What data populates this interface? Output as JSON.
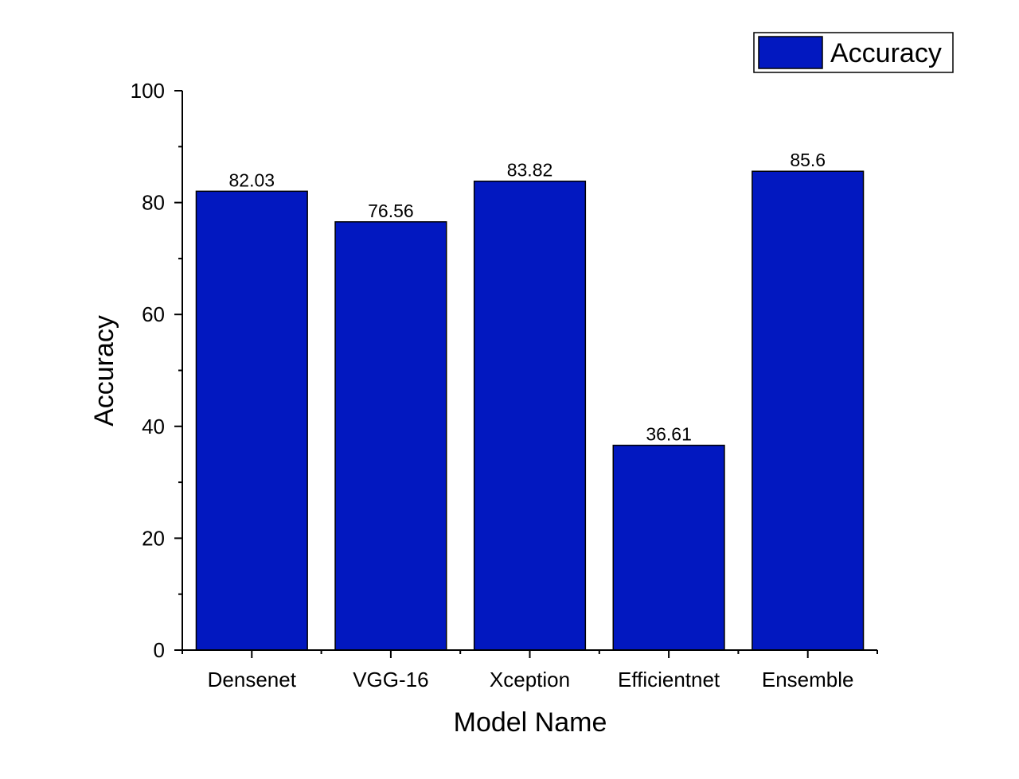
{
  "chart_data": {
    "type": "bar",
    "categories": [
      "Densenet",
      "VGG-16",
      "Xception",
      "Efficientnet",
      "Ensemble"
    ],
    "series": [
      {
        "name": "Accuracy",
        "values": [
          82.03,
          76.56,
          83.82,
          36.61,
          85.6
        ]
      }
    ],
    "data_labels": [
      "82.03",
      "76.56",
      "83.82",
      "36.61",
      "85.6"
    ],
    "xlabel": "Model Name",
    "ylabel": "Accuracy",
    "ylim": [
      0,
      100
    ],
    "yticks": [
      0,
      20,
      40,
      60,
      80,
      100
    ],
    "y_minor_step": 10,
    "grid": false,
    "legend": {
      "position": "top-right",
      "entries": [
        "Accuracy"
      ]
    },
    "colors": {
      "bar_fill": "#0218C0",
      "bar_stroke": "#000000"
    }
  }
}
